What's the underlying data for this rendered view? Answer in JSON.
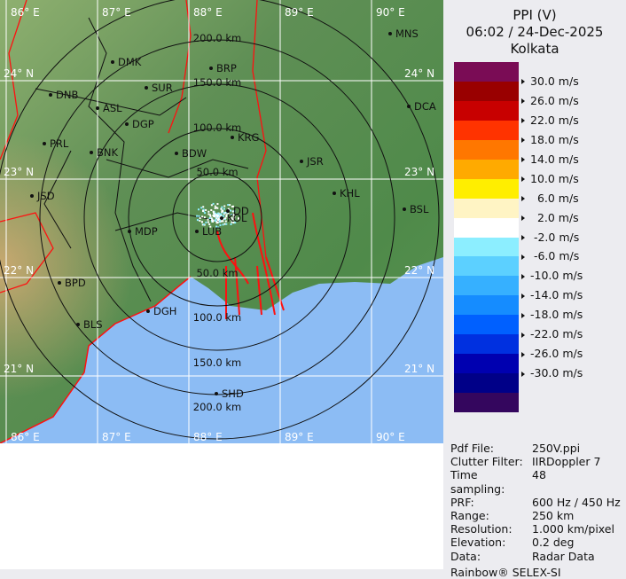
{
  "header": {
    "title": "PPI (V)",
    "datetime": "06:02 / 24-Dec-2025",
    "site": "Kolkata"
  },
  "colorbar": {
    "unit": "m/s",
    "colors": [
      "#7a0c55",
      "#990000",
      "#c80000",
      "#ff3300",
      "#ff7700",
      "#ffaa00",
      "#ffee00",
      "#fff4c4",
      "#ffffff",
      "#8ceeff",
      "#5cd0ff",
      "#36b0ff",
      "#158cff",
      "#0060ff",
      "#0030e0",
      "#0000b0",
      "#000088",
      "#34065e"
    ],
    "labels": [
      "30.0 m/s",
      "26.0 m/s",
      "22.0 m/s",
      "18.0 m/s",
      "14.0 m/s",
      "10.0 m/s",
      "  6.0 m/s",
      "  2.0 m/s",
      " -2.0 m/s",
      " -6.0 m/s",
      "-10.0 m/s",
      "-14.0 m/s",
      "-18.0 m/s",
      "-22.0 m/s",
      "-26.0 m/s",
      "-30.0 m/s"
    ]
  },
  "info": [
    {
      "k": "Pdf File:",
      "v": "250V.ppi"
    },
    {
      "k": "Clutter Filter:",
      "v": "IIRDoppler 7"
    },
    {
      "k": "Time sampling:",
      "v": "48"
    },
    {
      "k": "PRF:",
      "v": "600 Hz / 450 Hz"
    },
    {
      "k": "Range:",
      "v": "250 km"
    },
    {
      "k": "Resolution:",
      "v": "1.000 km/pixel"
    },
    {
      "k": "Elevation:",
      "v": "0.2 deg"
    },
    {
      "k": "Data:",
      "v": "Radar Data"
    }
  ],
  "footer": "Rainbow® SELEX-SI",
  "map": {
    "lon_labels": [
      "86° E",
      "87° E",
      "88° E",
      "89° E",
      "90° E"
    ],
    "lat_labels": [
      "24° N",
      "23° N",
      "22° N",
      "21° N"
    ],
    "range_labels_top": [
      "200.0 km",
      "150.0 km",
      "100.0 km",
      "50.0 km"
    ],
    "range_labels_bottom": [
      "50.0 km",
      "100.0 km",
      "150.0 km",
      "200.0 km"
    ],
    "cities": [
      [
        "MNS",
        440,
        38
      ],
      [
        "DMK",
        127,
        70
      ],
      [
        "BRP",
        238,
        77
      ],
      [
        "DNB",
        57,
        107
      ],
      [
        "SUR",
        165,
        99
      ],
      [
        "ASL",
        110,
        122
      ],
      [
        "DCA",
        461,
        120
      ],
      [
        "DGP",
        143,
        140
      ],
      [
        "PRL",
        50,
        162
      ],
      [
        "BNK",
        103,
        172
      ],
      [
        "KRG",
        262,
        155
      ],
      [
        "BDW",
        199,
        173
      ],
      [
        "JSR",
        340,
        182
      ],
      [
        "JSD",
        36,
        221
      ],
      [
        "KHL",
        377,
        218
      ],
      [
        "BSL",
        456,
        236
      ],
      [
        "MDP",
        146,
        261
      ],
      [
        "DD",
        257,
        238
      ],
      [
        "KOL",
        250,
        246
      ],
      [
        "LUB",
        222,
        261
      ],
      [
        "BPD",
        67,
        319
      ],
      [
        "BLS",
        88,
        366
      ],
      [
        "DGH",
        167,
        351
      ],
      [
        "SHD",
        244,
        444
      ]
    ]
  }
}
